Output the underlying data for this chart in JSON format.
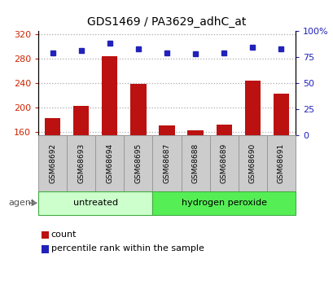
{
  "title": "GDS1469 / PA3629_adhC_at",
  "samples": [
    "GSM68692",
    "GSM68693",
    "GSM68694",
    "GSM68695",
    "GSM68687",
    "GSM68688",
    "GSM68689",
    "GSM68690",
    "GSM68691"
  ],
  "counts": [
    183,
    203,
    284,
    238,
    170,
    163,
    172,
    244,
    222
  ],
  "percentiles": [
    79,
    81,
    88,
    83,
    79,
    78,
    79,
    84,
    83
  ],
  "groups": [
    {
      "label": "untreated",
      "start": 0,
      "end": 4
    },
    {
      "label": "hydrogen peroxide",
      "start": 4,
      "end": 9
    }
  ],
  "ylim_left": [
    155,
    325
  ],
  "ylim_right": [
    0,
    100
  ],
  "yticks_left": [
    160,
    200,
    240,
    280,
    320
  ],
  "yticks_right": [
    0,
    25,
    50,
    75,
    100
  ],
  "yticklabels_right": [
    "0",
    "25",
    "50",
    "75",
    "100%"
  ],
  "bar_color": "#bb1111",
  "dot_color": "#2222bb",
  "grid_color": "#aaaaaa",
  "bg_color": "#ffffff",
  "tick_label_color_left": "#cc2200",
  "tick_label_color_right": "#2222bb",
  "group_bg_untreated": "#ccffcc",
  "group_bg_peroxide": "#55ee55",
  "group_border_color": "#44aa44",
  "sample_bg": "#cccccc",
  "sample_border": "#999999",
  "agent_label": "agent",
  "legend_count": "count",
  "legend_percentile": "percentile rank within the sample"
}
